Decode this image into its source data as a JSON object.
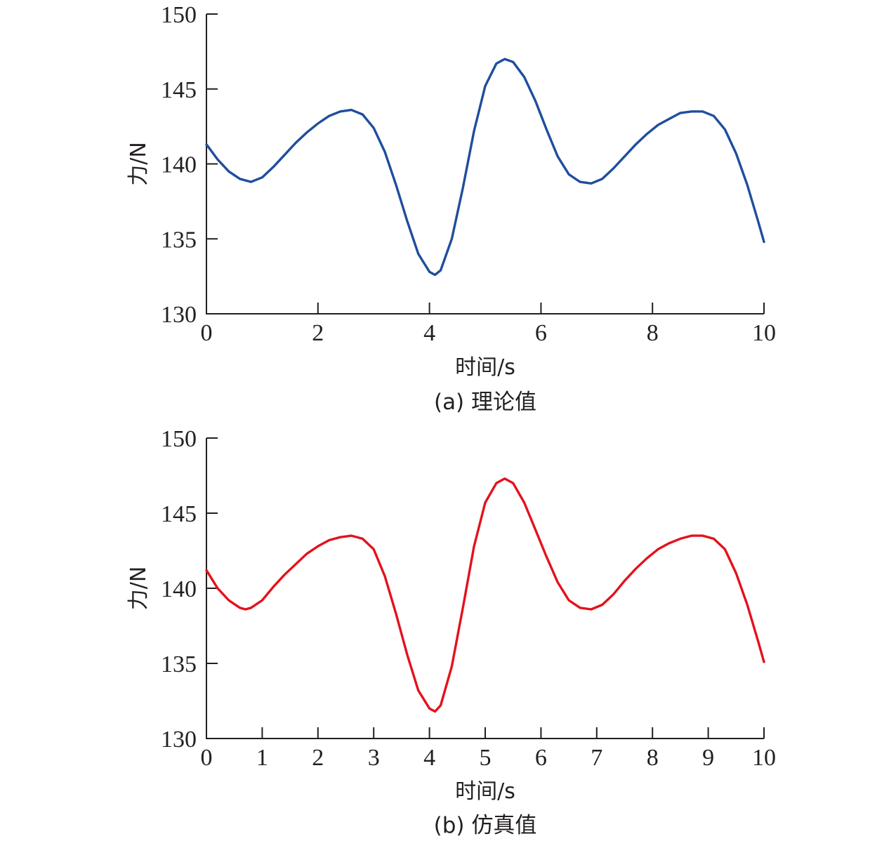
{
  "chart_data": [
    {
      "type": "line",
      "caption": "(a) 理论值",
      "xlabel": "时间/s",
      "ylabel": "力/N",
      "xlim": [
        0,
        10
      ],
      "ylim": [
        130,
        150
      ],
      "xticks": [
        0,
        2,
        4,
        6,
        8,
        10
      ],
      "yticks": [
        130,
        135,
        140,
        145,
        150
      ],
      "grid": false,
      "series": [
        {
          "color": "#1f4e9c",
          "x": [
            0,
            0.2,
            0.4,
            0.6,
            0.8,
            1.0,
            1.2,
            1.4,
            1.6,
            1.8,
            2.0,
            2.2,
            2.4,
            2.6,
            2.8,
            3.0,
            3.2,
            3.4,
            3.6,
            3.8,
            4.0,
            4.1,
            4.2,
            4.4,
            4.6,
            4.8,
            5.0,
            5.2,
            5.35,
            5.5,
            5.7,
            5.9,
            6.1,
            6.3,
            6.5,
            6.7,
            6.9,
            7.1,
            7.3,
            7.5,
            7.7,
            7.9,
            8.1,
            8.3,
            8.5,
            8.7,
            8.9,
            9.1,
            9.3,
            9.5,
            9.7,
            9.9,
            10.0
          ],
          "y": [
            141.3,
            140.3,
            139.5,
            139.0,
            138.8,
            139.1,
            139.8,
            140.6,
            141.4,
            142.1,
            142.7,
            143.2,
            143.5,
            143.6,
            143.3,
            142.4,
            140.8,
            138.6,
            136.2,
            134.0,
            132.8,
            132.6,
            132.9,
            135.0,
            138.4,
            142.2,
            145.2,
            146.7,
            147.0,
            146.8,
            145.8,
            144.2,
            142.3,
            140.5,
            139.3,
            138.8,
            138.7,
            139.0,
            139.7,
            140.5,
            141.3,
            142.0,
            142.6,
            143.0,
            143.4,
            143.5,
            143.5,
            143.2,
            142.3,
            140.7,
            138.6,
            136.1,
            134.8
          ]
        }
      ]
    },
    {
      "type": "line",
      "caption": "(b) 仿真值",
      "xlabel": "时间/s",
      "ylabel": "力/N",
      "xlim": [
        0,
        10
      ],
      "ylim": [
        130,
        150
      ],
      "xticks": [
        0,
        1,
        2,
        3,
        4,
        5,
        6,
        7,
        8,
        9,
        10
      ],
      "yticks": [
        130,
        135,
        140,
        145,
        150
      ],
      "grid": false,
      "series": [
        {
          "color": "#e3121c",
          "x": [
            0,
            0.2,
            0.4,
            0.6,
            0.7,
            0.8,
            1.0,
            1.2,
            1.4,
            1.6,
            1.8,
            2.0,
            2.2,
            2.4,
            2.6,
            2.8,
            3.0,
            3.2,
            3.4,
            3.6,
            3.8,
            4.0,
            4.1,
            4.2,
            4.4,
            4.6,
            4.8,
            5.0,
            5.2,
            5.35,
            5.5,
            5.7,
            5.9,
            6.1,
            6.3,
            6.5,
            6.7,
            6.9,
            7.1,
            7.3,
            7.5,
            7.7,
            7.9,
            8.1,
            8.3,
            8.5,
            8.7,
            8.9,
            9.1,
            9.3,
            9.5,
            9.7,
            9.9,
            10.0
          ],
          "y": [
            141.2,
            140.0,
            139.2,
            138.7,
            138.6,
            138.7,
            139.2,
            140.1,
            140.9,
            141.6,
            142.3,
            142.8,
            143.2,
            143.4,
            143.5,
            143.3,
            142.6,
            140.8,
            138.3,
            135.6,
            133.2,
            132.0,
            131.8,
            132.2,
            134.8,
            138.7,
            142.8,
            145.7,
            147.0,
            147.3,
            147.0,
            145.7,
            143.9,
            142.1,
            140.4,
            139.2,
            138.7,
            138.6,
            138.9,
            139.6,
            140.5,
            141.3,
            142.0,
            142.6,
            143.0,
            143.3,
            143.5,
            143.5,
            143.3,
            142.6,
            141.0,
            138.9,
            136.4,
            135.1
          ]
        }
      ]
    }
  ]
}
